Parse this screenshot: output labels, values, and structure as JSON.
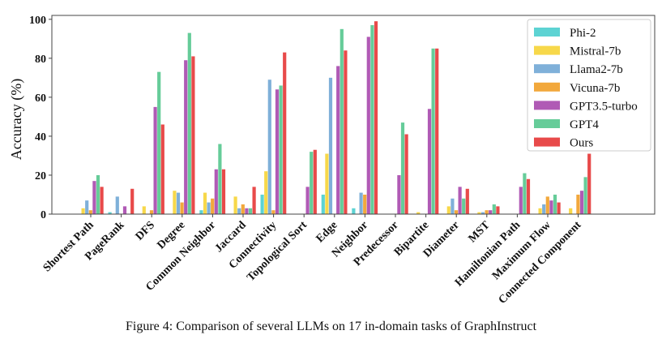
{
  "chart_data": {
    "type": "bar",
    "title": "",
    "xlabel": "",
    "ylabel": "Accuracy (%)",
    "ylim": [
      0,
      102
    ],
    "yticks": [
      0,
      20,
      40,
      60,
      80,
      100
    ],
    "grid": false,
    "legend_position": "top-right",
    "categories": [
      "Shortest Path",
      "PageRank",
      "DFS",
      "Degree",
      "Common Neighbor",
      "Jaccard",
      "Connectivity",
      "Topological Sort",
      "Edge",
      "Neighbor",
      "Predecessor",
      "Bipartite",
      "Diameter",
      "MST",
      "Hamiltonian Path",
      "Maximum Flow",
      "Connected Component"
    ],
    "series": [
      {
        "name": "Phi-2",
        "color": "#5dd3d3",
        "values": [
          0,
          1,
          0,
          0,
          2,
          0,
          10,
          0,
          10,
          3,
          0,
          0,
          0,
          0,
          0,
          0,
          0
        ]
      },
      {
        "name": "Mistral-7b",
        "color": "#f7d84a",
        "values": [
          3,
          0,
          4,
          12,
          11,
          9,
          22,
          0,
          31,
          0,
          0,
          1,
          4,
          1,
          0,
          3,
          3
        ]
      },
      {
        "name": "Llama2-7b",
        "color": "#7fb0d9",
        "values": [
          7,
          9,
          0,
          11,
          6,
          3,
          69,
          0,
          70,
          11,
          0,
          0,
          8,
          1,
          0,
          5,
          0
        ]
      },
      {
        "name": "Vicuna-7b",
        "color": "#f2a83c",
        "values": [
          2,
          0,
          2,
          6,
          8,
          5,
          2,
          0,
          0,
          10,
          0,
          0,
          2,
          2,
          0,
          9,
          10
        ]
      },
      {
        "name": "GPT3.5-turbo",
        "color": "#b05ab5",
        "values": [
          17,
          4,
          55,
          79,
          23,
          3,
          64,
          14,
          76,
          91,
          20,
          54,
          14,
          2,
          14,
          7,
          12
        ]
      },
      {
        "name": "GPT4",
        "color": "#66cc99",
        "values": [
          20,
          0,
          73,
          93,
          36,
          3,
          66,
          32,
          95,
          97,
          47,
          85,
          8,
          5,
          21,
          10,
          19
        ]
      },
      {
        "name": "Ours",
        "color": "#e84a4a",
        "values": [
          14,
          13,
          46,
          81,
          23,
          14,
          83,
          33,
          84,
          99,
          41,
          85,
          13,
          4,
          18,
          6,
          31
        ]
      }
    ]
  },
  "caption": "Figure 4: Comparison of several LLMs on 17 in-domain tasks of GraphInstruct"
}
